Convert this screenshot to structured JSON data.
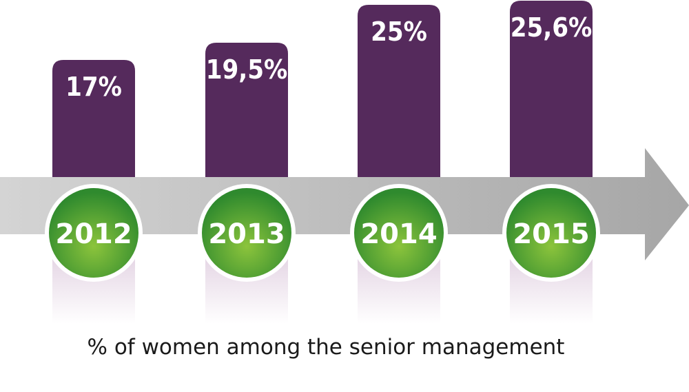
{
  "chart_data": {
    "type": "bar",
    "categories": [
      "2012",
      "2013",
      "2014",
      "2015"
    ],
    "values": [
      17,
      19.5,
      25,
      25.6
    ],
    "value_labels": [
      "17%",
      "19,5%",
      "25%",
      "25,6%"
    ],
    "title": "",
    "xlabel": "% of women among the senior management",
    "ylabel": "",
    "grid": false,
    "colors": {
      "bar": "#552a5c",
      "circle": "#5fa83a",
      "arrow": "#bdbdbd"
    }
  }
}
